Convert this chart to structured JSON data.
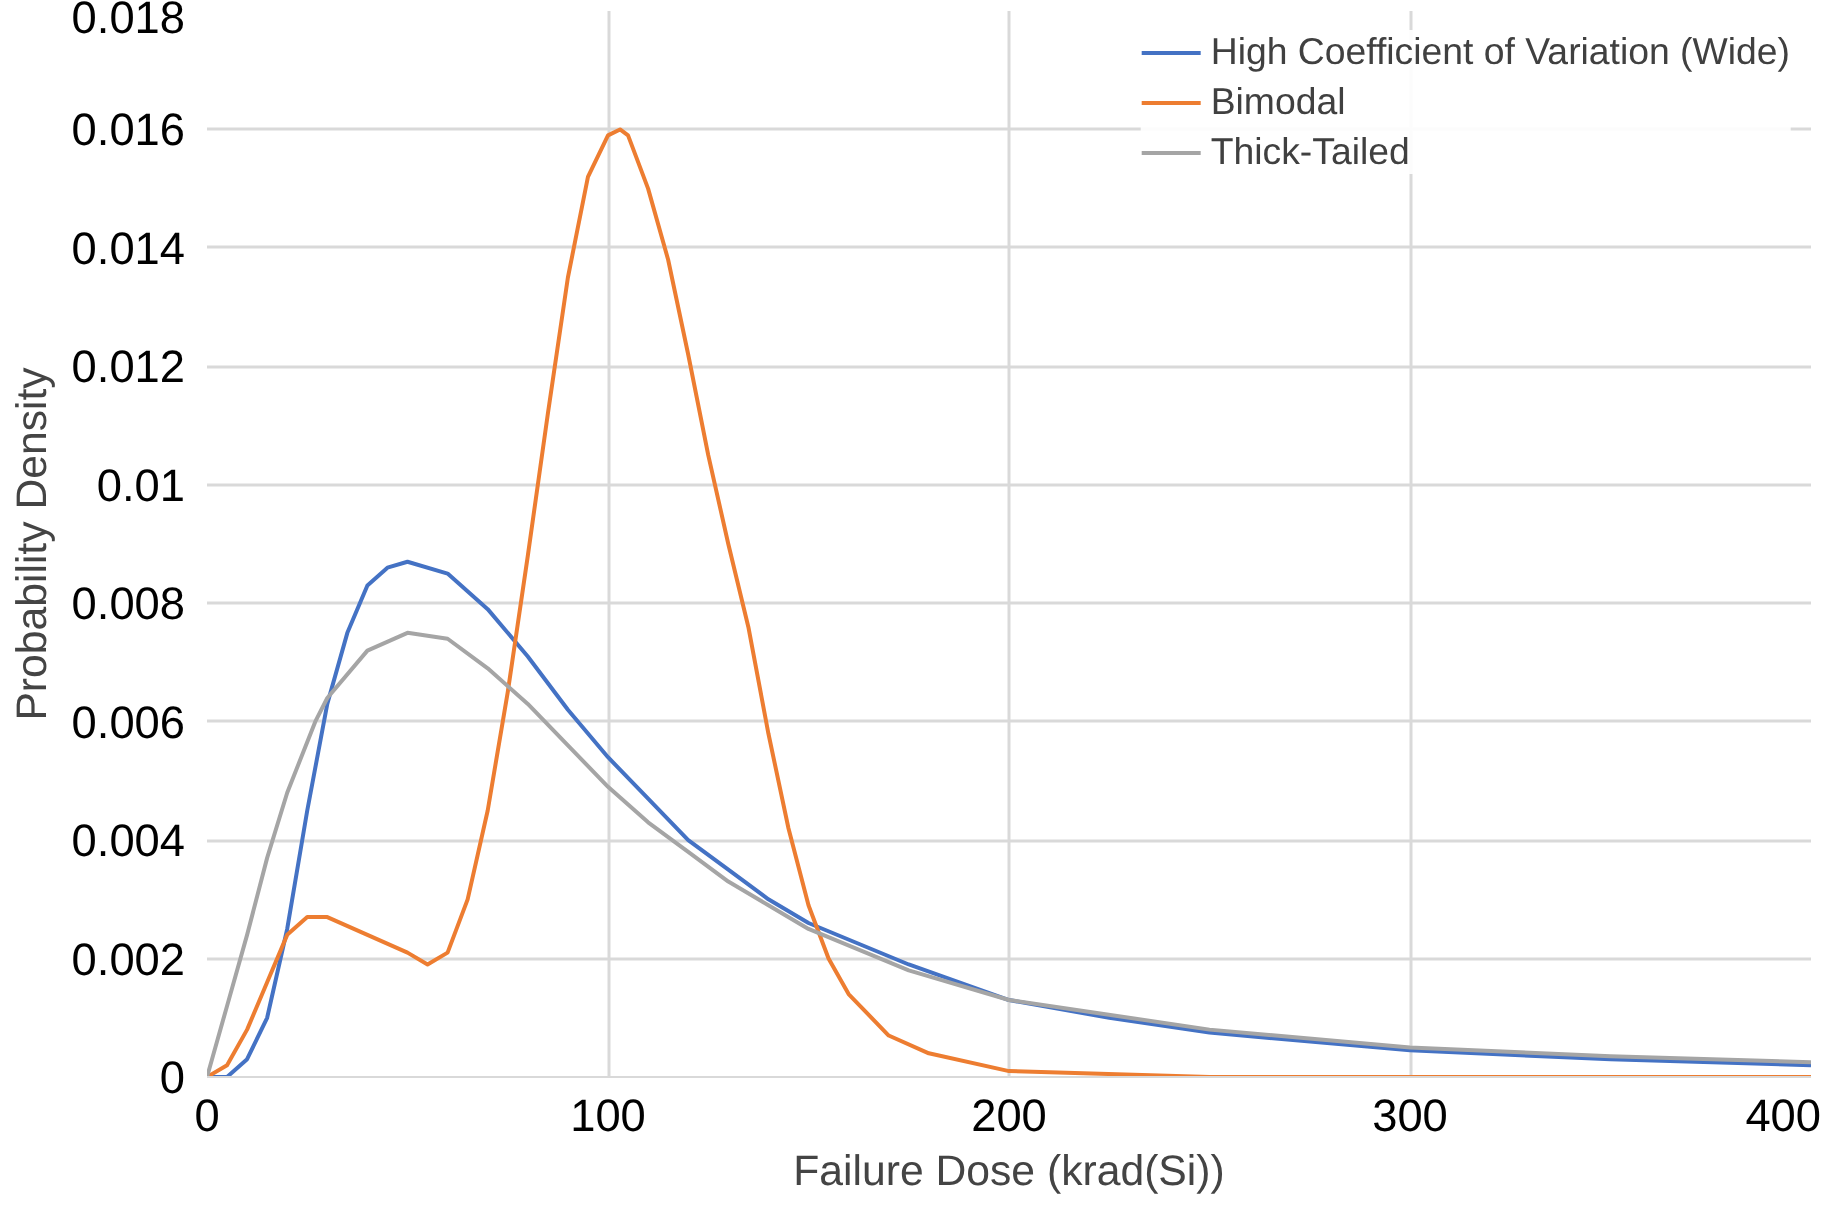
{
  "chart_data": {
    "type": "line",
    "xlabel": "Failure Dose (krad(Si))",
    "ylabel": "Probability Density",
    "xlim": [
      0,
      400
    ],
    "xticks": [
      0,
      100,
      200,
      300,
      400
    ],
    "ylim": [
      0,
      0.018
    ],
    "yticks": [
      0,
      0.002,
      0.004,
      0.006,
      0.008,
      0.01,
      0.012,
      0.014,
      0.016,
      0.018
    ],
    "grid": true,
    "legend": "top right",
    "marker": "none",
    "line_style": "solid",
    "series": [
      {
        "name": "High Coefficient of Variation (Wide)",
        "color": "#4472c4",
        "x": [
          0,
          5,
          10,
          15,
          20,
          25,
          30,
          35,
          40,
          45,
          50,
          60,
          70,
          80,
          90,
          100,
          110,
          120,
          130,
          140,
          150,
          175,
          200,
          225,
          250,
          300,
          350,
          400
        ],
        "values": [
          0,
          0,
          0.0003,
          0.001,
          0.0025,
          0.0045,
          0.0063,
          0.0075,
          0.0083,
          0.0086,
          0.0087,
          0.0085,
          0.0079,
          0.0071,
          0.0062,
          0.0054,
          0.0047,
          0.004,
          0.0035,
          0.003,
          0.0026,
          0.0019,
          0.0013,
          0.001,
          0.00075,
          0.00045,
          0.0003,
          0.0002
        ]
      },
      {
        "name": "Bimodal",
        "color": "#ed7d31",
        "x": [
          0,
          5,
          10,
          15,
          20,
          25,
          30,
          40,
          50,
          55,
          60,
          65,
          70,
          75,
          80,
          85,
          90,
          95,
          100,
          103,
          105,
          110,
          115,
          120,
          125,
          130,
          135,
          140,
          145,
          150,
          155,
          160,
          170,
          180,
          200,
          250,
          300,
          400
        ],
        "values": [
          0,
          0.0002,
          0.0008,
          0.0016,
          0.0024,
          0.0027,
          0.0027,
          0.0024,
          0.0021,
          0.0019,
          0.0021,
          0.003,
          0.0045,
          0.0065,
          0.0088,
          0.0112,
          0.0135,
          0.0152,
          0.0159,
          0.016,
          0.0159,
          0.015,
          0.0138,
          0.0122,
          0.0105,
          0.009,
          0.0076,
          0.0058,
          0.0042,
          0.0029,
          0.002,
          0.0014,
          0.0007,
          0.0004,
          0.0001,
          0,
          0,
          0
        ]
      },
      {
        "name": "Thick-Tailed",
        "color": "#a5a5a5",
        "x": [
          0,
          5,
          10,
          15,
          20,
          27,
          30,
          40,
          50,
          60,
          70,
          80,
          90,
          100,
          110,
          120,
          130,
          140,
          150,
          175,
          200,
          250,
          300,
          350,
          400
        ],
        "values": [
          0,
          0.0012,
          0.0024,
          0.0037,
          0.0048,
          0.006,
          0.0064,
          0.0072,
          0.0075,
          0.0074,
          0.0069,
          0.0063,
          0.0056,
          0.0049,
          0.0043,
          0.0038,
          0.0033,
          0.0029,
          0.0025,
          0.0018,
          0.0013,
          0.0008,
          0.0005,
          0.00035,
          0.00025
        ]
      }
    ]
  }
}
